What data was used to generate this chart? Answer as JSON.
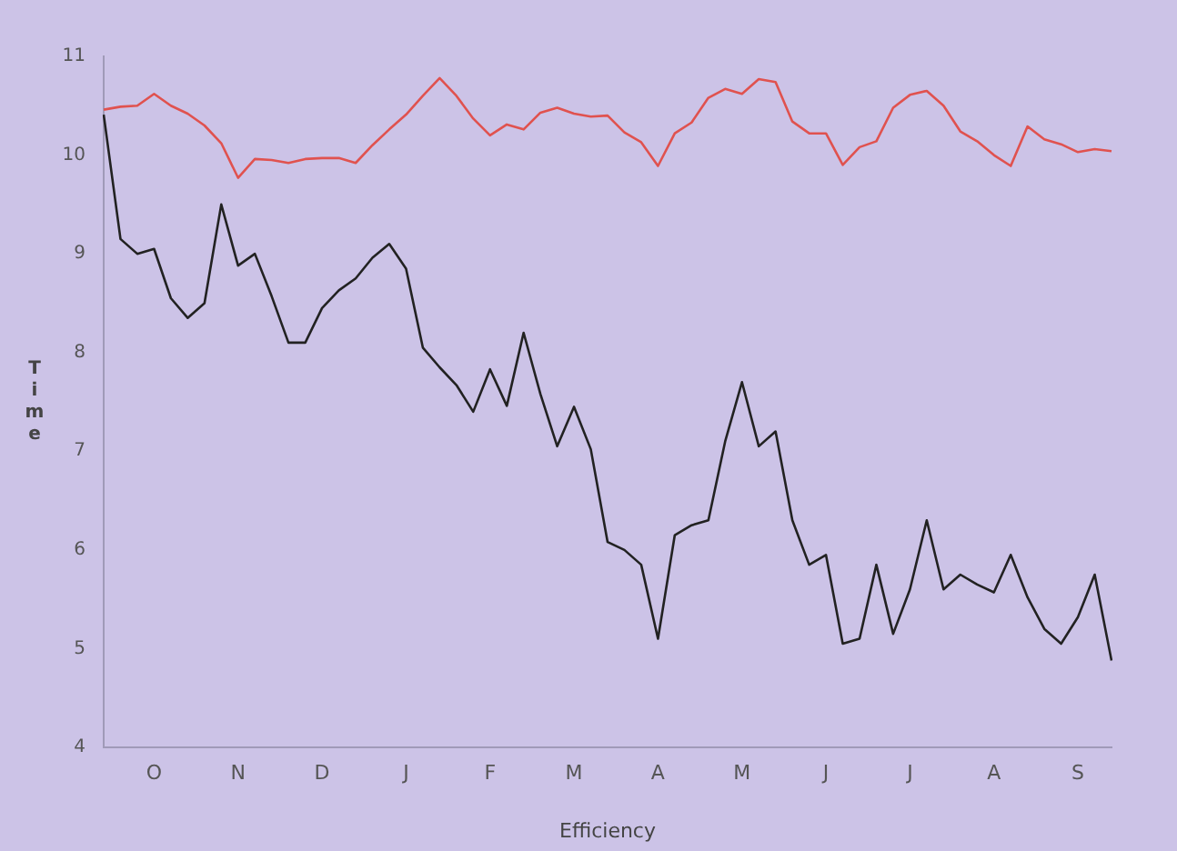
{
  "chart_data": {
    "type": "line",
    "xlabel": "Efficiency",
    "ylabel": "Time",
    "ylim": [
      4,
      11
    ],
    "categories": [
      null,
      null,
      null,
      "O",
      null,
      null,
      null,
      null,
      "N",
      null,
      null,
      null,
      null,
      "D",
      null,
      null,
      null,
      null,
      "J",
      null,
      null,
      null,
      null,
      "F",
      null,
      null,
      null,
      null,
      "M",
      null,
      null,
      null,
      null,
      "A",
      null,
      null,
      null,
      null,
      "M",
      null,
      null,
      null,
      null,
      "J",
      null,
      null,
      null,
      null,
      "J",
      null,
      null,
      null,
      null,
      "A",
      null,
      null,
      null,
      null,
      "S",
      null,
      null
    ],
    "yticks": [
      4,
      5,
      6,
      7,
      8,
      9,
      10,
      11
    ],
    "grid": false,
    "legend": false,
    "marker": "none",
    "line_style": "solid",
    "series": [
      {
        "color": "#e0524f",
        "values": [
          10.46,
          10.49,
          10.5,
          10.62,
          10.5,
          10.42,
          10.3,
          10.12,
          9.77,
          9.96,
          9.95,
          9.92,
          9.96,
          9.97,
          9.97,
          9.92,
          10.1,
          10.26,
          10.41,
          10.6,
          10.78,
          10.6,
          10.37,
          10.2,
          10.31,
          10.26,
          10.43,
          10.48,
          10.42,
          10.39,
          10.4,
          10.23,
          10.13,
          9.89,
          10.22,
          10.33,
          10.58,
          10.67,
          10.62,
          10.77,
          10.74,
          10.34,
          10.22,
          10.22,
          9.9,
          10.08,
          10.14,
          10.48,
          10.61,
          10.65,
          10.5,
          10.24,
          10.14,
          10,
          9.89,
          10.29,
          10.16,
          10.11,
          10.03,
          10.06,
          10.04
        ]
      },
      {
        "color": "#222222",
        "values": [
          10.41,
          9.15,
          9,
          9.05,
          8.55,
          8.35,
          8.5,
          9.5,
          8.88,
          9,
          8.57,
          8.1,
          8.1,
          8.45,
          8.63,
          8.75,
          8.96,
          9.1,
          8.85,
          8.05,
          7.85,
          7.67,
          7.4,
          7.83,
          7.46,
          8.2,
          7.58,
          7.05,
          7.45,
          7.02,
          6.08,
          6,
          5.85,
          5.1,
          6.15,
          6.25,
          6.3,
          7.1,
          7.7,
          7.05,
          7.2,
          6.3,
          5.85,
          5.95,
          5.05,
          5.1,
          5.85,
          5.15,
          5.6,
          6.3,
          5.6,
          5.75,
          5.65,
          5.57,
          5.95,
          5.52,
          5.2,
          5.05,
          5.32,
          5.75,
          4.88
        ]
      }
    ]
  }
}
